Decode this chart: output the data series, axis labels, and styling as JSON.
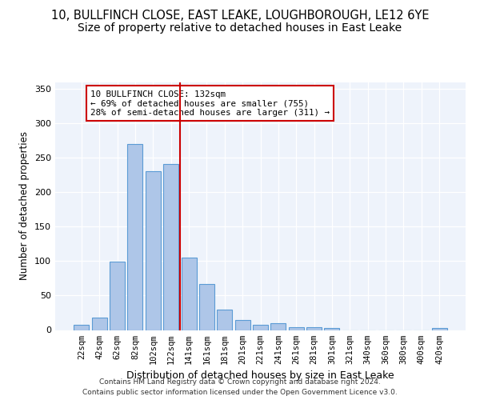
{
  "title1": "10, BULLFINCH CLOSE, EAST LEAKE, LOUGHBOROUGH, LE12 6YE",
  "title2": "Size of property relative to detached houses in East Leake",
  "xlabel": "Distribution of detached houses by size in East Leake",
  "ylabel": "Number of detached properties",
  "bar_labels": [
    "22sqm",
    "42sqm",
    "62sqm",
    "82sqm",
    "102sqm",
    "122sqm",
    "141sqm",
    "161sqm",
    "181sqm",
    "201sqm",
    "221sqm",
    "241sqm",
    "261sqm",
    "281sqm",
    "301sqm",
    "321sqm",
    "340sqm",
    "360sqm",
    "380sqm",
    "400sqm",
    "420sqm"
  ],
  "bar_values": [
    7,
    18,
    99,
    270,
    231,
    241,
    105,
    67,
    30,
    14,
    8,
    10,
    4,
    4,
    3,
    0,
    0,
    0,
    0,
    0,
    3
  ],
  "bar_color": "#aec6e8",
  "bar_edge_color": "#5b9bd5",
  "vline_x": 5.5,
  "vline_color": "#cc0000",
  "annotation_text": "10 BULLFINCH CLOSE: 132sqm\n← 69% of detached houses are smaller (755)\n28% of semi-detached houses are larger (311) →",
  "annotation_box_color": "#ffffff",
  "annotation_box_edge": "#cc0000",
  "ylim": [
    0,
    360
  ],
  "yticks": [
    0,
    50,
    100,
    150,
    200,
    250,
    300,
    350
  ],
  "footer1": "Contains HM Land Registry data © Crown copyright and database right 2024.",
  "footer2": "Contains public sector information licensed under the Open Government Licence v3.0.",
  "bg_color": "#eef3fb",
  "title1_fontsize": 10.5,
  "title2_fontsize": 10
}
